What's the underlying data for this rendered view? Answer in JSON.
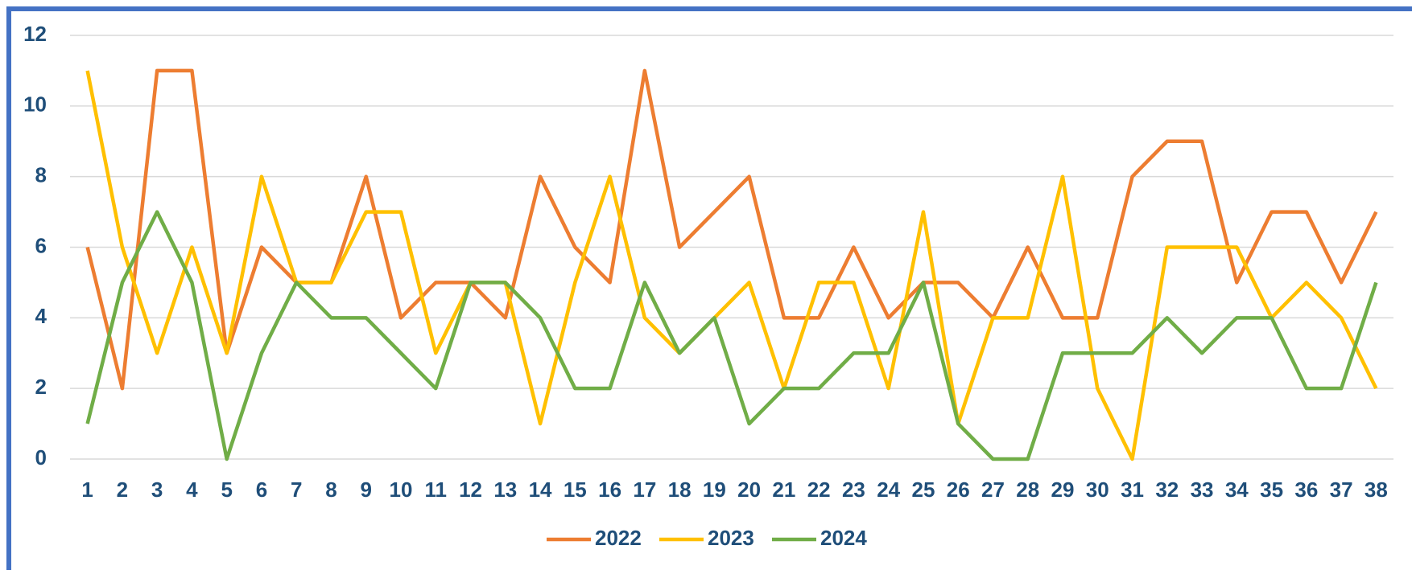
{
  "chart_data": {
    "type": "line",
    "categories": [
      "1",
      "2",
      "3",
      "4",
      "5",
      "6",
      "7",
      "8",
      "9",
      "10",
      "11",
      "12",
      "13",
      "14",
      "15",
      "16",
      "17",
      "18",
      "19",
      "20",
      "21",
      "22",
      "23",
      "24",
      "25",
      "26",
      "27",
      "28",
      "29",
      "30",
      "31",
      "32",
      "33",
      "34",
      "35",
      "36",
      "37",
      "38"
    ],
    "series": [
      {
        "name": "2022",
        "color": "#ed7d31",
        "values": [
          6,
          2,
          11,
          11,
          3,
          6,
          5,
          5,
          8,
          4,
          5,
          5,
          4,
          8,
          6,
          5,
          11,
          6,
          7,
          8,
          4,
          4,
          6,
          4,
          5,
          5,
          4,
          6,
          4,
          4,
          8,
          9,
          9,
          5,
          7,
          7,
          5,
          7
        ]
      },
      {
        "name": "2023",
        "color": "#ffc000",
        "values": [
          11,
          6,
          3,
          6,
          3,
          8,
          5,
          5,
          7,
          7,
          3,
          5,
          5,
          1,
          5,
          8,
          4,
          3,
          4,
          5,
          2,
          5,
          5,
          2,
          7,
          1,
          4,
          4,
          8,
          2,
          0,
          6,
          6,
          6,
          4,
          5,
          4,
          2
        ]
      },
      {
        "name": "2024",
        "color": "#70ad47",
        "values": [
          1,
          5,
          7,
          5,
          0,
          3,
          5,
          4,
          4,
          3,
          2,
          5,
          5,
          4,
          2,
          2,
          5,
          3,
          4,
          1,
          2,
          2,
          3,
          3,
          5,
          1,
          0,
          0,
          3,
          3,
          3,
          4,
          3,
          4,
          4,
          2,
          2,
          5
        ]
      }
    ],
    "ylim": [
      0,
      12
    ],
    "yticks": [
      0,
      2,
      4,
      6,
      8,
      10,
      12
    ],
    "grid": true,
    "legend": "bottom"
  }
}
